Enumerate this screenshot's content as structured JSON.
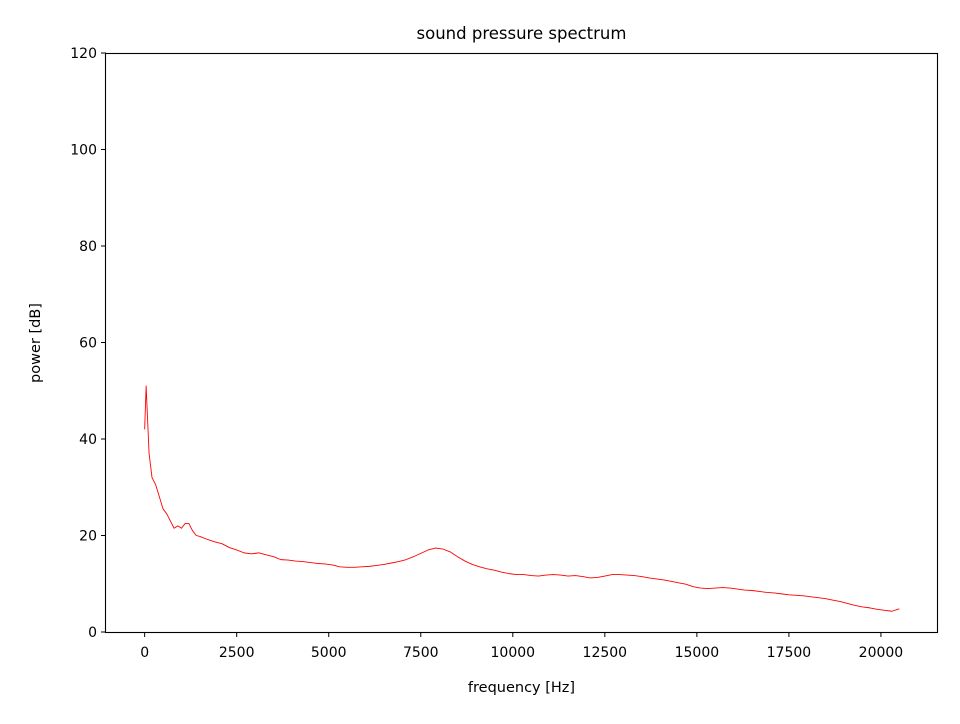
{
  "chart_data": {
    "type": "line",
    "title": "sound pressure spectrum",
    "xlabel": "frequency [Hz]",
    "ylabel": "power [dB]",
    "xlim": [
      -1050,
      21550
    ],
    "ylim": [
      0,
      120
    ],
    "xticks": [
      0,
      2500,
      5000,
      7500,
      10000,
      12500,
      15000,
      17500,
      20000
    ],
    "yticks": [
      0,
      20,
      40,
      60,
      80,
      100,
      120
    ],
    "grid": false,
    "line_color": "#ff0000",
    "series": [
      {
        "x": [
          0,
          40,
          80,
          120,
          200,
          300,
          400,
          500,
          600,
          700,
          800,
          900,
          1000,
          1100,
          1200,
          1300,
          1400,
          1500,
          1700,
          1900,
          2100,
          2300,
          2500,
          2700,
          2900,
          3100,
          3300,
          3500,
          3700,
          3900,
          4100,
          4300,
          4500,
          4700,
          4900,
          5100,
          5300,
          5500,
          5700,
          5900,
          6100,
          6300,
          6500,
          6700,
          6900,
          7100,
          7300,
          7500,
          7700,
          7900,
          8100,
          8300,
          8500,
          8700,
          8900,
          9100,
          9300,
          9500,
          9700,
          9900,
          10100,
          10300,
          10500,
          10700,
          10900,
          11100,
          11300,
          11500,
          11700,
          11900,
          12100,
          12300,
          12500,
          12700,
          12900,
          13100,
          13300,
          13500,
          13700,
          13900,
          14100,
          14300,
          14500,
          14700,
          14900,
          15100,
          15300,
          15500,
          15700,
          15900,
          16100,
          16300,
          16500,
          16700,
          16900,
          17100,
          17300,
          17500,
          17700,
          17900,
          18100,
          18300,
          18500,
          18700,
          18900,
          19100,
          19300,
          19500,
          19700,
          19900,
          20100,
          20300,
          20500
        ],
        "y": [
          42,
          51,
          44,
          37,
          32,
          30.5,
          28,
          25.5,
          24.5,
          23,
          21.5,
          22,
          21.5,
          22.5,
          22.5,
          21,
          20,
          19.8,
          19.2,
          18.7,
          18.3,
          17.5,
          17,
          16.4,
          16.2,
          16.4,
          16,
          15.6,
          15,
          14.9,
          14.7,
          14.6,
          14.4,
          14.2,
          14.1,
          13.9,
          13.5,
          13.4,
          13.4,
          13.5,
          13.6,
          13.8,
          14,
          14.3,
          14.6,
          15,
          15.6,
          16.3,
          17,
          17.4,
          17.2,
          16.6,
          15.6,
          14.7,
          14,
          13.5,
          13.1,
          12.8,
          12.4,
          12.1,
          11.9,
          11.9,
          11.7,
          11.6,
          11.8,
          11.9,
          11.8,
          11.6,
          11.7,
          11.5,
          11.2,
          11.3,
          11.6,
          11.9,
          11.9,
          11.8,
          11.7,
          11.5,
          11.2,
          11,
          10.8,
          10.5,
          10.2,
          9.9,
          9.4,
          9.1,
          9,
          9.1,
          9.2,
          9.1,
          8.9,
          8.7,
          8.6,
          8.4,
          8.2,
          8.1,
          7.9,
          7.7,
          7.6,
          7.5,
          7.3,
          7.1,
          6.9,
          6.6,
          6.3,
          5.9,
          5.5,
          5.2,
          5,
          4.7,
          4.5,
          4.3,
          4.8
        ]
      }
    ]
  }
}
